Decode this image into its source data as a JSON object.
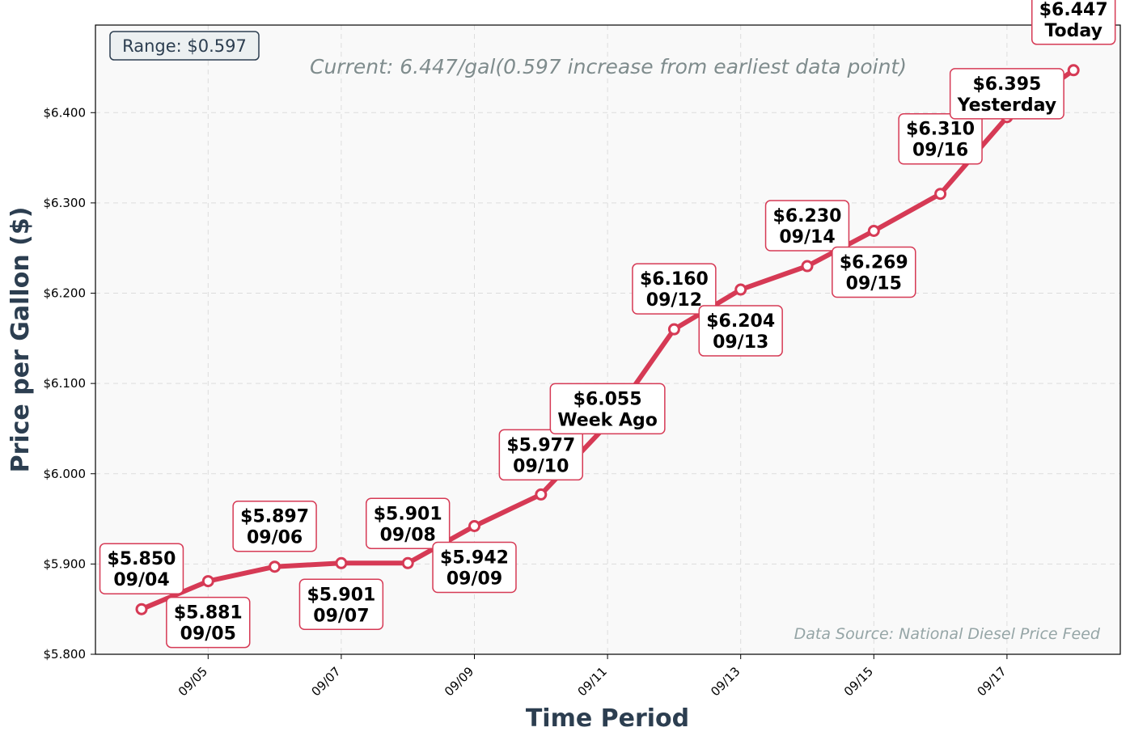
{
  "chart_data": {
    "type": "line",
    "title": "",
    "subtitle": "Current: 6.447/gal(0.597 increase from earliest data point)",
    "xlabel": "Time Period",
    "ylabel": "Price per Gallon ($)",
    "ylim": [
      5.8,
      6.497
    ],
    "yticks": [
      {
        "value": 5.8,
        "label": "$5.800"
      },
      {
        "value": 5.9,
        "label": "$5.900"
      },
      {
        "value": 6.0,
        "label": "$6.000"
      },
      {
        "value": 6.1,
        "label": "$6.100"
      },
      {
        "value": 6.2,
        "label": "$6.200"
      },
      {
        "value": 6.3,
        "label": "$6.300"
      },
      {
        "value": 6.4,
        "label": "$6.400"
      }
    ],
    "xticks": [
      "09/05",
      "09/07",
      "09/09",
      "09/11",
      "09/13",
      "09/15",
      "09/17"
    ],
    "x": [
      "09/04",
      "09/05",
      "09/06",
      "09/07",
      "09/08",
      "09/09",
      "09/10",
      "09/11",
      "09/12",
      "09/13",
      "09/14",
      "09/15",
      "09/16",
      "09/17",
      "09/18"
    ],
    "series": [
      {
        "values": [
          5.85,
          5.881,
          5.897,
          5.901,
          5.901,
          5.942,
          5.977,
          6.055,
          6.16,
          6.204,
          6.23,
          6.269,
          6.31,
          6.395,
          6.447
        ],
        "color": "#d63a55"
      }
    ],
    "annotations": [
      {
        "price": "$5.850",
        "label": "09/04"
      },
      {
        "price": "$5.881",
        "label": "09/05"
      },
      {
        "price": "$5.897",
        "label": "09/06"
      },
      {
        "price": "$5.901",
        "label": "09/07"
      },
      {
        "price": "$5.901",
        "label": "09/08"
      },
      {
        "price": "$5.942",
        "label": "09/09"
      },
      {
        "price": "$5.977",
        "label": "09/10"
      },
      {
        "price": "$6.055",
        "label": "Week Ago"
      },
      {
        "price": "$6.160",
        "label": "09/12"
      },
      {
        "price": "$6.204",
        "label": "09/13"
      },
      {
        "price": "$6.230",
        "label": "09/14"
      },
      {
        "price": "$6.269",
        "label": "09/15"
      },
      {
        "price": "$6.310",
        "label": "09/16"
      },
      {
        "price": "$6.395",
        "label": "Yesterday"
      },
      {
        "price": "$6.447",
        "label": "Today"
      }
    ],
    "range_box": "Range: $0.597",
    "source": "Data Source: National Diesel Price Feed",
    "grid": true,
    "colors": {
      "line": "#d63a55",
      "plot_bg": "#f9f9f9",
      "annotation_border": "#d63a55"
    }
  }
}
